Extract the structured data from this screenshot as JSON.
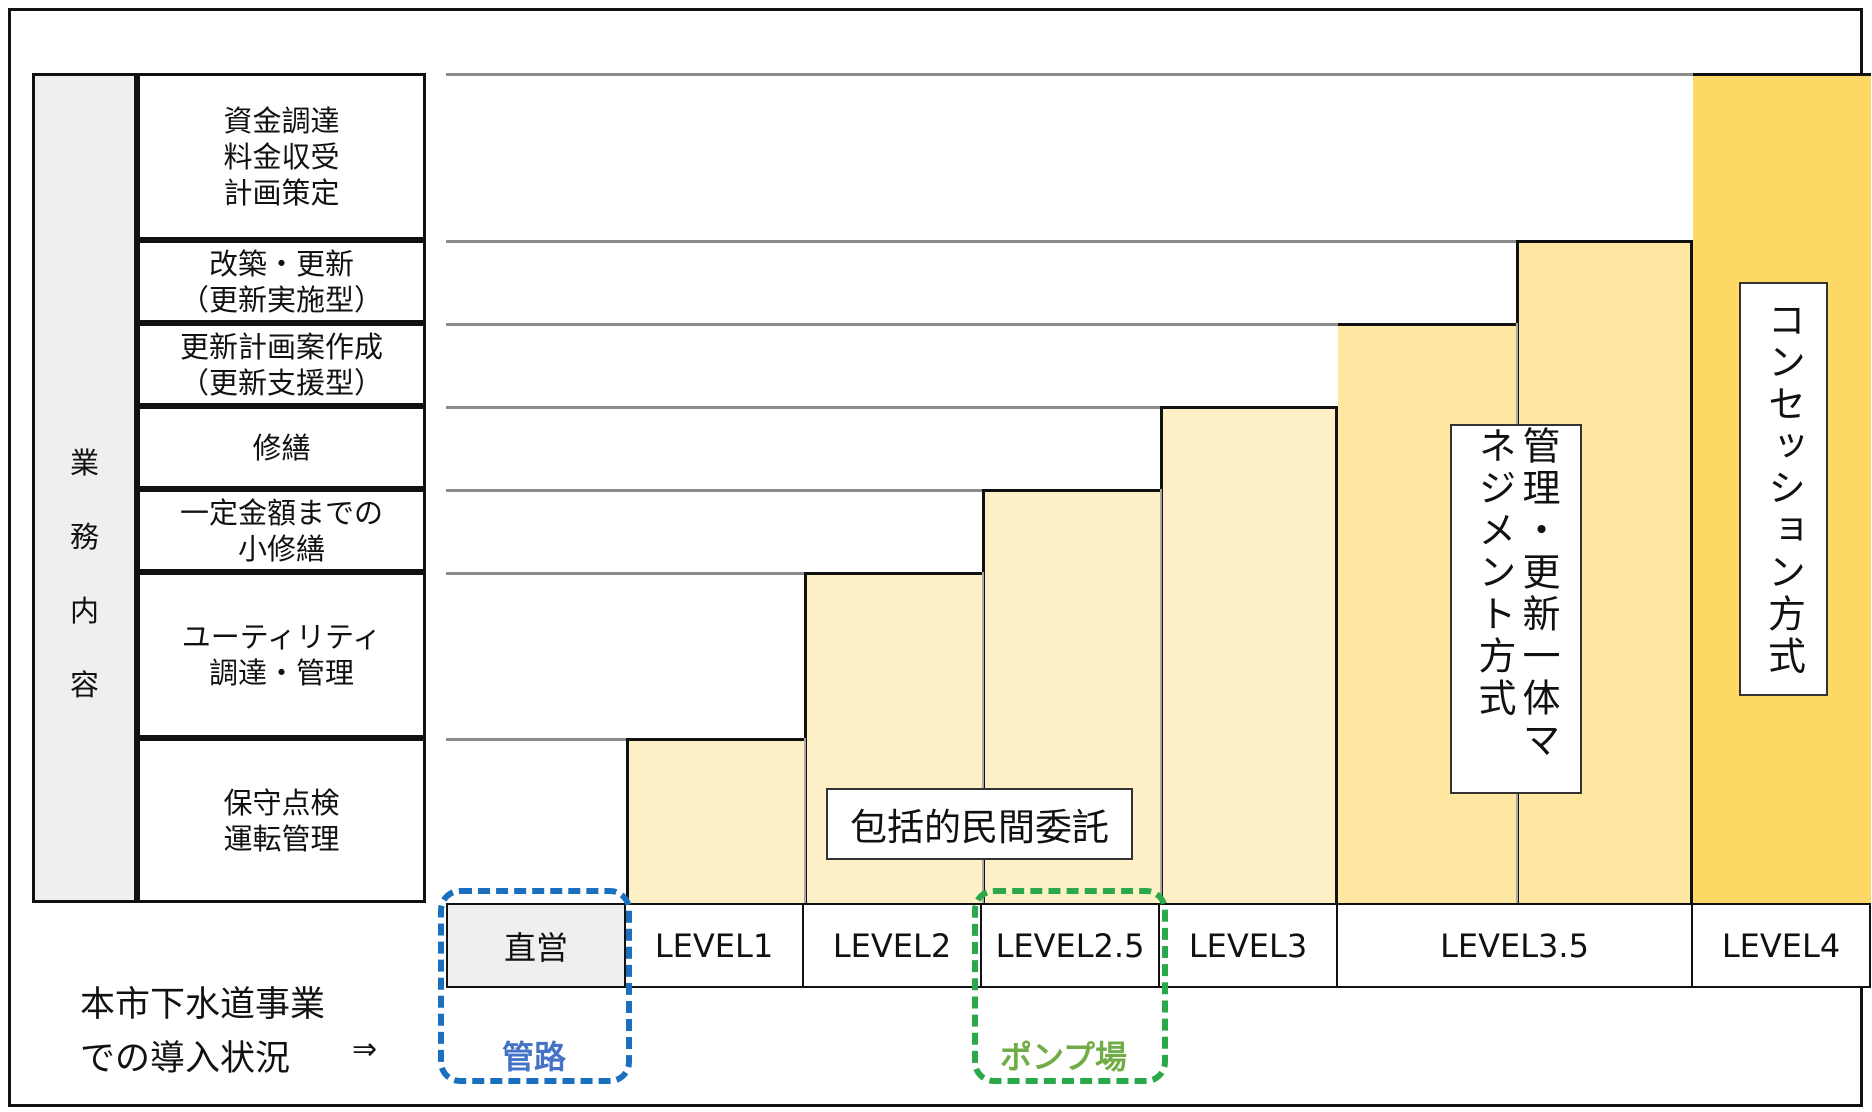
{
  "business_label": "業務内容",
  "tasks": [
    "資金調達\n料金収受\n計画策定",
    "改築・更新\n（更新実施型）",
    "更新計画案作成\n（更新支援型）",
    "修繕",
    "一定金額までの\n小修繕",
    "ユーティリティ\n調達・管理",
    "保守点検\n運転管理"
  ],
  "levels": [
    "直営",
    "LEVEL1",
    "LEVEL2",
    "LEVEL2.5",
    "LEVEL3",
    "LEVEL3.5",
    "LEVEL4"
  ],
  "methods": {
    "comprehensive": "包括的民間委託",
    "management": "管理・更新一体マネジメント方式",
    "concession": "コンセッション方式"
  },
  "adoption": {
    "label": "本市下水道事業\nでの導入状況",
    "arrow": "⇒",
    "pipes": "管路",
    "pump": "ポンプ場"
  },
  "colors": {
    "light": "#fdf0c6",
    "medium": "#fde7a1",
    "strong": "#fed865",
    "blue": "#1a6fbf",
    "green": "#2aa84a",
    "blue_text": "#4472c4",
    "green_text": "#70ad47"
  }
}
